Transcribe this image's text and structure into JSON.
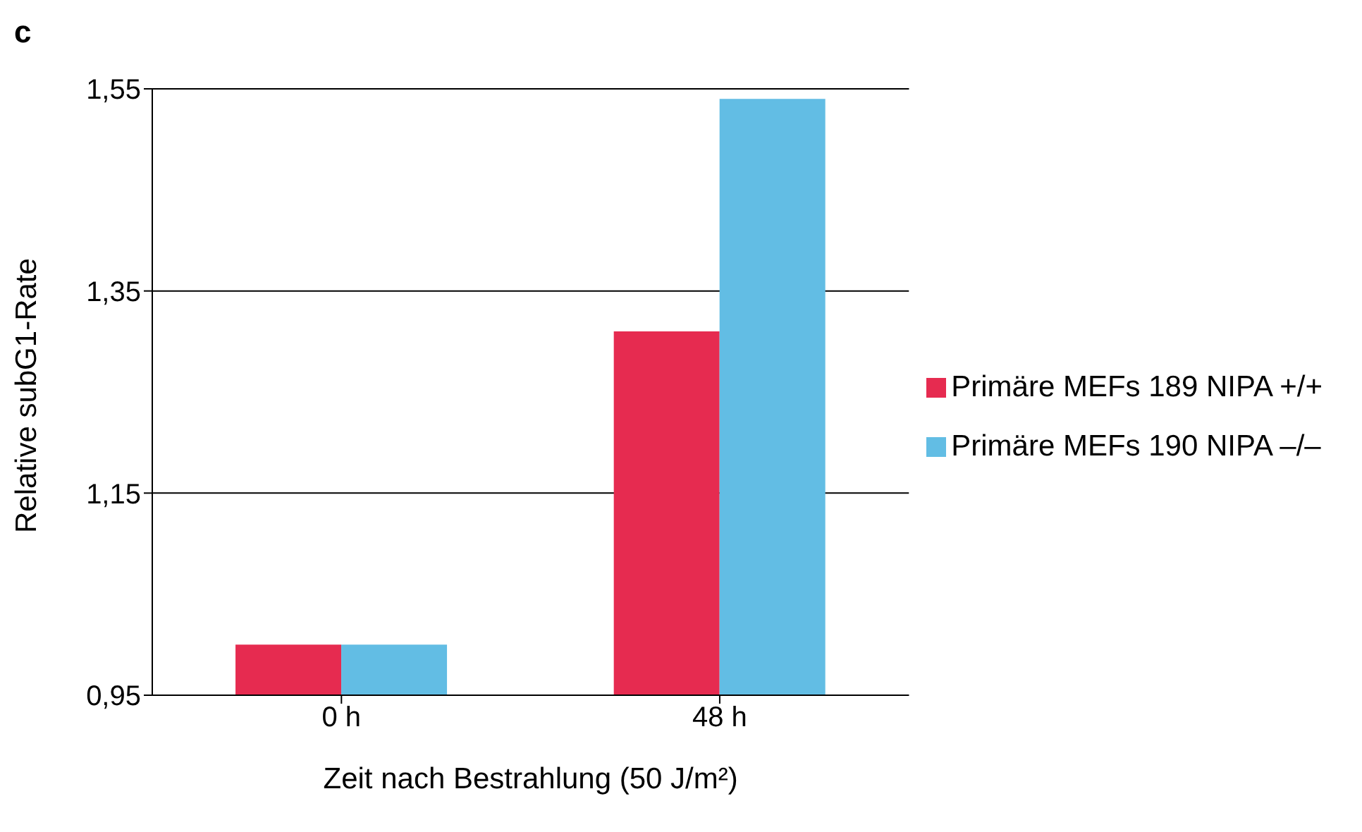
{
  "chart_data": {
    "type": "bar",
    "title": "c",
    "xlabel": "Zeit nach Bestrahlung (50 J/m²)",
    "ylabel": "Relative subG1-Rate",
    "categories": [
      "0 h",
      "48 h"
    ],
    "series": [
      {
        "name": "Primäre MEFs 189 NIPA +/+",
        "color": "#e62b50",
        "values": [
          1.0,
          1.31
        ]
      },
      {
        "name": "Primäre MEFs 190 NIPA –/–",
        "color": "#62bde4",
        "values": [
          1.0,
          1.54
        ]
      }
    ],
    "ylim": [
      0.95,
      1.55
    ],
    "yticks": [
      {
        "value": 0.95,
        "label": "0,95"
      },
      {
        "value": 1.15,
        "label": "1,15"
      },
      {
        "value": 1.35,
        "label": "1,35"
      },
      {
        "value": 1.55,
        "label": "1,55"
      }
    ],
    "grid": "y",
    "legend": "right"
  }
}
